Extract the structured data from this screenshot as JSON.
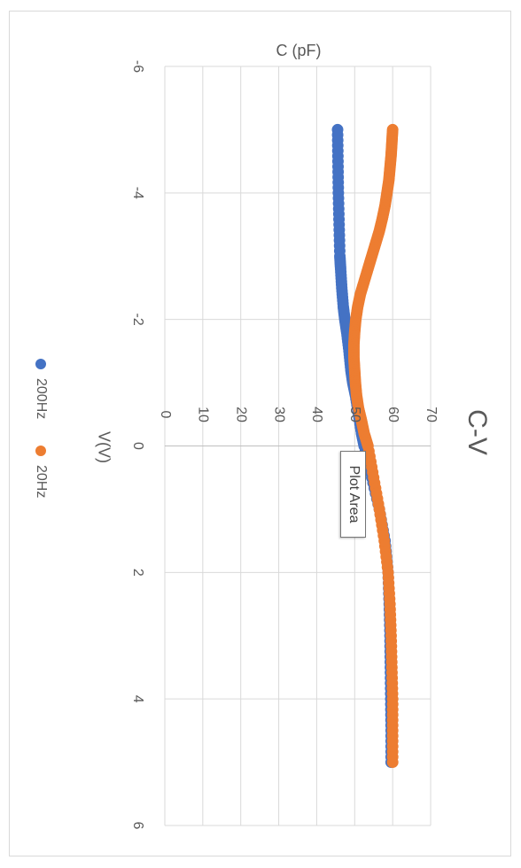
{
  "chart_data": {
    "type": "scatter",
    "title": "C-V",
    "xlabel": "V(V)",
    "ylabel": "C (pF)",
    "xlim": [
      -6,
      6
    ],
    "ylim": [
      0,
      70
    ],
    "xticks": [
      "-6",
      "-4",
      "-2",
      "0",
      "2",
      "4",
      "6"
    ],
    "yticks": [
      "0",
      "10",
      "20",
      "30",
      "40",
      "50",
      "60",
      "70"
    ],
    "grid": true,
    "legend_position": "bottom",
    "orientation": "rotated 90 degrees clockwise",
    "series": [
      {
        "name": "200Hz",
        "color": "#4472c4",
        "x": [
          -5.0,
          -4.5,
          -4.0,
          -3.5,
          -3.0,
          -2.8,
          -2.5,
          -2.2,
          -2.0,
          -1.8,
          -1.5,
          -1.2,
          -1.0,
          -0.8,
          -0.5,
          -0.2,
          0.0,
          0.5,
          1.0,
          1.5,
          2.0,
          2.5,
          3.0,
          3.5,
          4.0,
          4.5,
          5.0
        ],
        "y": [
          45.5,
          45.6,
          45.7,
          45.9,
          46.1,
          46.3,
          46.6,
          47.0,
          47.4,
          47.9,
          48.5,
          49.0,
          49.5,
          50.2,
          51.0,
          51.8,
          52.5,
          54.5,
          56.5,
          58.0,
          58.8,
          59.1,
          59.3,
          59.4,
          59.5,
          59.6,
          59.6
        ]
      },
      {
        "name": "20Hz",
        "color": "#ed7d31",
        "x": [
          -5.0,
          -4.8,
          -4.6,
          -4.4,
          -4.2,
          -4.0,
          -3.8,
          -3.6,
          -3.4,
          -3.2,
          -3.0,
          -2.8,
          -2.6,
          -2.4,
          -2.2,
          -2.0,
          -1.8,
          -1.6,
          -1.4,
          -1.2,
          -1.0,
          -0.8,
          -0.6,
          -0.4,
          -0.2,
          0.0,
          0.5,
          1.0,
          1.5,
          2.0,
          2.5,
          3.0,
          3.5,
          4.0,
          4.5,
          5.0
        ],
        "y": [
          60.0,
          59.8,
          59.6,
          59.3,
          59.0,
          58.5,
          58.0,
          57.3,
          56.5,
          55.5,
          54.5,
          53.5,
          52.5,
          51.5,
          50.8,
          50.3,
          50.0,
          49.8,
          49.8,
          50.0,
          50.2,
          50.5,
          51.0,
          51.8,
          52.5,
          53.5,
          55.0,
          56.5,
          57.8,
          58.8,
          59.3,
          59.6,
          59.8,
          60.0,
          60.0,
          60.0
        ]
      }
    ]
  },
  "tooltip": {
    "text": "Plot Area"
  }
}
